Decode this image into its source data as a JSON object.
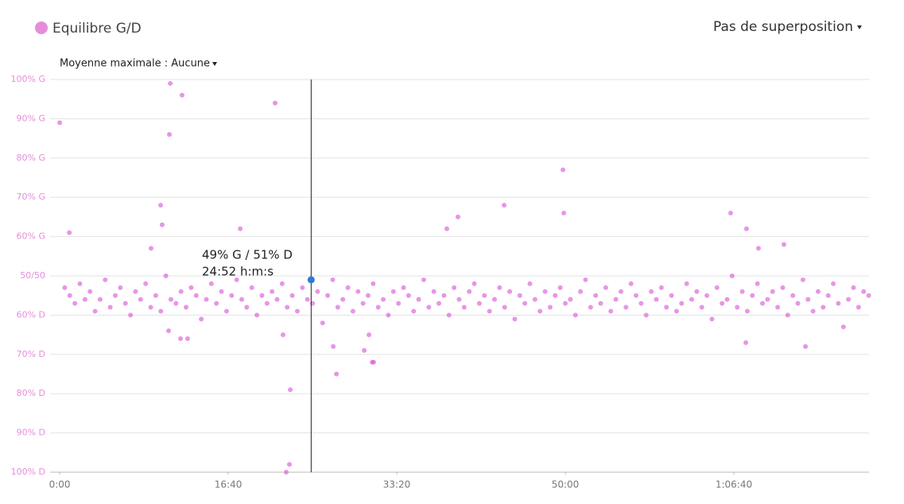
{
  "chart_data": {
    "type": "scatter",
    "controls": {
      "overlay": "Pas de superposition",
      "average": "Moyenne maximale : Aucune"
    },
    "xlim": [
      -57,
      4802
    ],
    "xticks": [
      {
        "value": 0,
        "label": "0:00"
      },
      {
        "value": 1000,
        "label": "16:40"
      },
      {
        "value": 2000,
        "label": "33:20"
      },
      {
        "value": 3000,
        "label": "50:00"
      },
      {
        "value": 4000,
        "label": "1:06:40"
      }
    ],
    "ylim": [
      0,
      100
    ],
    "yticks": [
      {
        "value": 100,
        "label": "100% G"
      },
      {
        "value": 90,
        "label": "90% G"
      },
      {
        "value": 80,
        "label": "80% G"
      },
      {
        "value": 70,
        "label": "70% G"
      },
      {
        "value": 60,
        "label": "60% G"
      },
      {
        "value": 50,
        "label": "50/50"
      },
      {
        "value": 40,
        "label": "60% D"
      },
      {
        "value": 30,
        "label": "70% D"
      },
      {
        "value": 20,
        "label": "80% D"
      },
      {
        "value": 10,
        "label": "90% D"
      },
      {
        "value": 0,
        "label": "100% D"
      }
    ],
    "grid": true,
    "x": [
      30,
      60,
      90,
      120,
      150,
      180,
      210,
      240,
      270,
      300,
      330,
      360,
      390,
      420,
      450,
      480,
      510,
      540,
      570,
      600,
      630,
      660,
      690,
      720,
      750,
      780,
      810,
      840,
      870,
      900,
      930,
      960,
      990,
      1020,
      1050,
      1080,
      1110,
      1140,
      1170,
      1200,
      1230,
      1260,
      1290,
      1320,
      1350,
      1380,
      1410,
      1440,
      1470,
      1500,
      1530,
      1560,
      1590,
      1620,
      1650,
      1680,
      1710,
      1740,
      1770,
      1800,
      1830,
      1860,
      1890,
      1920,
      1950,
      1980,
      2010,
      2040,
      2070,
      2100,
      2130,
      2160,
      2190,
      2220,
      2250,
      2280,
      2310,
      2340,
      2370,
      2400,
      2430,
      2460,
      2490,
      2520,
      2550,
      2580,
      2610,
      2640,
      2670,
      2700,
      2730,
      2760,
      2790,
      2820,
      2850,
      2880,
      2910,
      2940,
      2970,
      3000,
      3030,
      3060,
      3090,
      3120,
      3150,
      3180,
      3210,
      3240,
      3270,
      3300,
      3330,
      3360,
      3390,
      3420,
      3450,
      3480,
      3510,
      3540,
      3570,
      3600,
      3630,
      3660,
      3690,
      3720,
      3750,
      3780,
      3810,
      3840,
      3870,
      3900,
      3930,
      3960,
      3990,
      4020,
      4050,
      4080,
      4110,
      4140,
      4170,
      4200,
      4230,
      4260,
      4290,
      4320,
      4350,
      4380,
      4410,
      4440,
      4470,
      4500,
      4530,
      4560,
      4590,
      4620,
      4650,
      4680,
      4710,
      4740,
      4770,
      4800,
      0,
      57,
      656,
      651,
      726,
      599,
      608,
      542,
      1278,
      1071,
      1363,
      1344,
      1368,
      1325,
      2986,
      2991,
      2637,
      2363,
      2297,
      3981,
      4075,
      4146,
      4297,
      1642,
      1623,
      1807,
      1854,
      4425,
      4071,
      646,
      717,
      759,
      1835,
      1863
    ],
    "series": [
      {
        "name": "Equilibre G/D",
        "color": "#d94fd6",
        "values": [
          47,
          45,
          43,
          48,
          44,
          46,
          41,
          44,
          49,
          42,
          45,
          47,
          43,
          40,
          46,
          44,
          48,
          42,
          45,
          41,
          50,
          44,
          43,
          46,
          42,
          47,
          45,
          39,
          44,
          48,
          43,
          46,
          41,
          45,
          49,
          44,
          42,
          47,
          40,
          45,
          43,
          46,
          44,
          48,
          42,
          45,
          41,
          47,
          44,
          43,
          46,
          38,
          45,
          49,
          42,
          44,
          47,
          41,
          46,
          43,
          45,
          48,
          42,
          44,
          40,
          46,
          43,
          47,
          45,
          41,
          44,
          49,
          42,
          46,
          43,
          45,
          40,
          47,
          44,
          42,
          46,
          48,
          43,
          45,
          41,
          44,
          47,
          42,
          46,
          39,
          45,
          43,
          48,
          44,
          41,
          46,
          42,
          45,
          47,
          43,
          44,
          40,
          46,
          49,
          42,
          45,
          43,
          47,
          41,
          44,
          46,
          42,
          48,
          45,
          43,
          40,
          46,
          44,
          47,
          42,
          45,
          41,
          43,
          48,
          44,
          46,
          42,
          45,
          39,
          47,
          43,
          44,
          50,
          42,
          46,
          41,
          45,
          48,
          43,
          44,
          46,
          42,
          47,
          40,
          45,
          43,
          49,
          44,
          41,
          46,
          42,
          45,
          48,
          43,
          37,
          44,
          47,
          42,
          46,
          45,
          89,
          61,
          99,
          86,
          96,
          68,
          63,
          57,
          94,
          62,
          2,
          0,
          21,
          35,
          77,
          66,
          68,
          65,
          62,
          66,
          62,
          57,
          58,
          25,
          32,
          31,
          28,
          32,
          33,
          36,
          34,
          34,
          35,
          28
        ]
      }
    ],
    "tooltip": {
      "x": {
        "value": 1492,
        "label": "24:52 h:m:s"
      },
      "y": {
        "value": 49,
        "label": "49% G / 51% D"
      }
    }
  }
}
